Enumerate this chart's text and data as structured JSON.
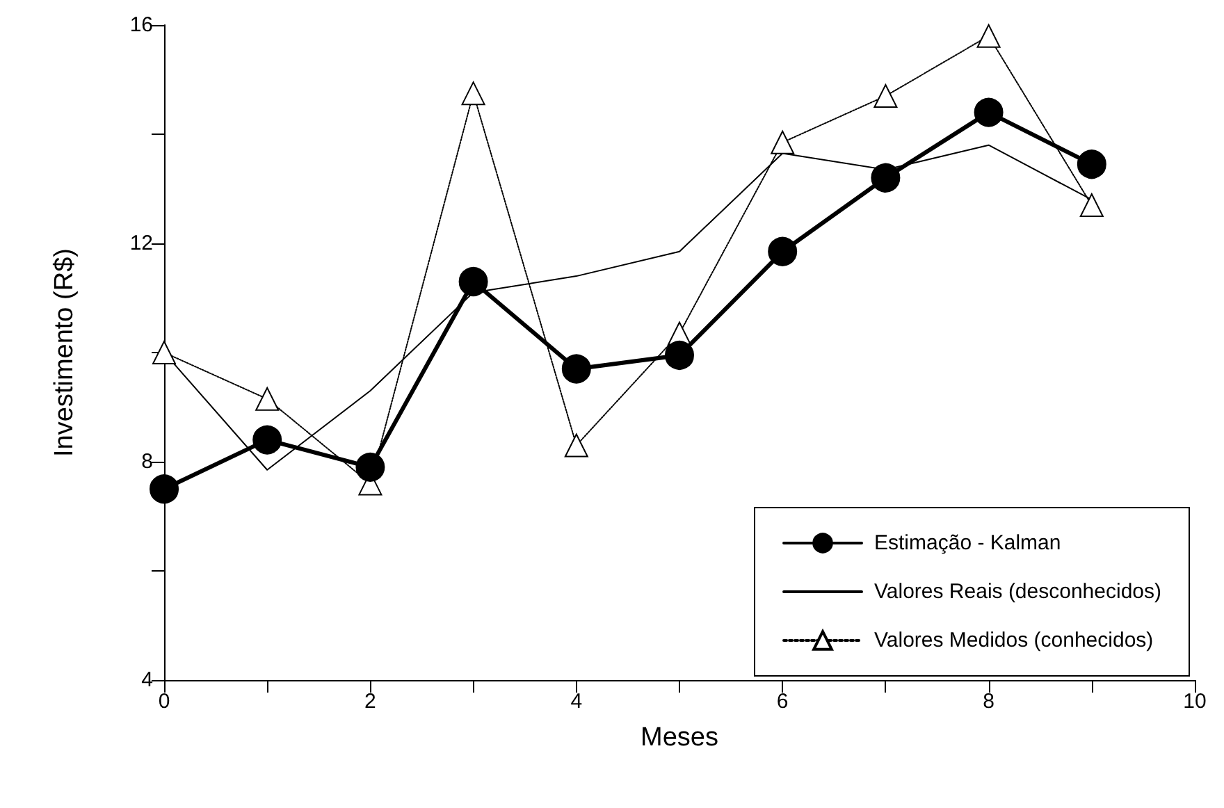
{
  "chart_data": {
    "type": "line",
    "xlabel": "Meses",
    "ylabel": "Investimento (R$)",
    "xlim": [
      0,
      10
    ],
    "xticks": [
      0,
      {
        "value": 1,
        "label": null
      },
      2,
      {
        "value": 3,
        "label": null
      },
      4,
      {
        "value": 5,
        "label": null
      },
      6,
      {
        "value": 7,
        "label": null
      },
      8,
      {
        "value": 9,
        "label": null
      },
      10
    ],
    "ylim": [
      4,
      16
    ],
    "yticks": [
      4,
      {
        "value": 6,
        "label": null
      },
      8,
      {
        "value": 10,
        "label": null
      },
      12,
      {
        "value": 14,
        "label": null
      },
      16
    ],
    "x": [
      0,
      1,
      2,
      3,
      4,
      5,
      6,
      7,
      8,
      9
    ],
    "grid": false,
    "legend": "bottom right",
    "series": [
      {
        "name": "Estimação - Kalman",
        "color": "#000000",
        "marker": "circle",
        "line_style": "solid",
        "values": [
          7.5,
          8.4,
          7.9,
          11.3,
          9.7,
          9.95,
          11.85,
          13.2,
          14.4,
          13.45
        ]
      },
      {
        "name": "Valores Reais (desconhecidos)",
        "color": "#000000",
        "marker": "none",
        "line_style": "solid",
        "values": [
          10.0,
          7.85,
          9.3,
          11.1,
          11.4,
          11.85,
          13.65,
          13.35,
          13.8,
          12.8
        ]
      },
      {
        "name": "Valores Medidos (conhecidos)",
        "color": "#000000",
        "marker": "triangle",
        "line_style": "dotted",
        "values": [
          10.0,
          9.15,
          7.6,
          14.75,
          8.3,
          10.35,
          13.85,
          14.7,
          15.8,
          12.7
        ]
      }
    ]
  }
}
